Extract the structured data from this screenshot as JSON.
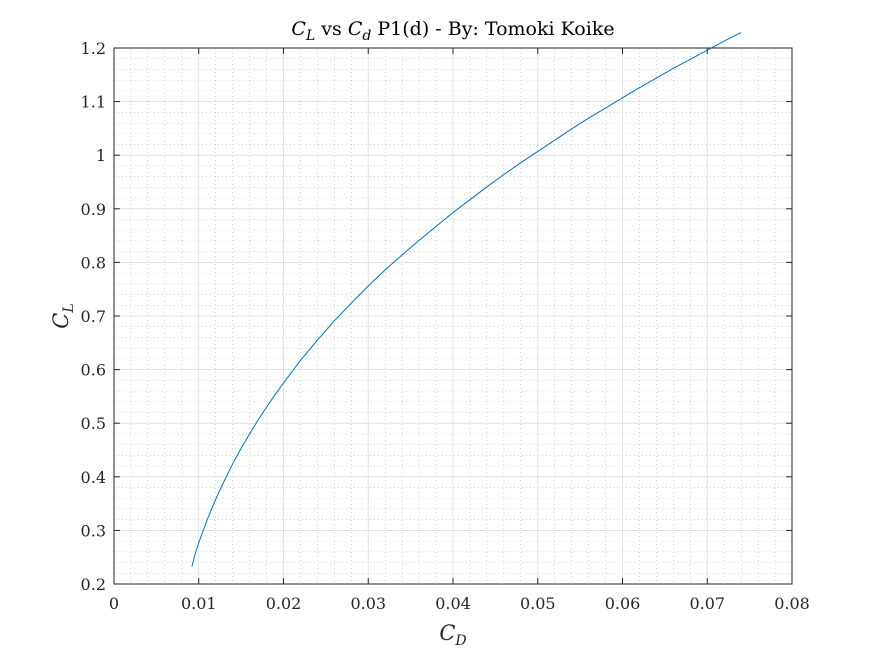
{
  "chart_data": {
    "type": "line",
    "title": {
      "main_symbol": "C",
      "main_subscript": "L",
      "middle": " vs ",
      "second_symbol": "C",
      "second_subscript": "d",
      "suffix": " P1(d) - By: Tomoki Koike"
    },
    "xlabel": {
      "symbol": "C",
      "subscript": "D"
    },
    "ylabel": {
      "symbol": "C",
      "subscript": "L"
    },
    "xlim": [
      0,
      0.08
    ],
    "ylim": [
      0.2,
      1.2
    ],
    "xticks": [
      "0",
      "0.01",
      "0.02",
      "0.03",
      "0.04",
      "0.05",
      "0.06",
      "0.07",
      "0.08"
    ],
    "yticks": [
      "0.2",
      "0.3",
      "0.4",
      "0.5",
      "0.6",
      "0.7",
      "0.8",
      "0.9",
      "1",
      "1.1",
      "1.2"
    ],
    "grid": true,
    "minor_grid": true,
    "line_color": "#0072BD",
    "series": [
      {
        "x": [
          0.0092,
          0.0095,
          0.01,
          0.011,
          0.012,
          0.013,
          0.014,
          0.015,
          0.016,
          0.017,
          0.018,
          0.019,
          0.02,
          0.022,
          0.024,
          0.026,
          0.028,
          0.03,
          0.032,
          0.034,
          0.036,
          0.038,
          0.04,
          0.042,
          0.044,
          0.046,
          0.048,
          0.05,
          0.052,
          0.054,
          0.056,
          0.058,
          0.06,
          0.062,
          0.064,
          0.066,
          0.068,
          0.07,
          0.072,
          0.074
        ],
        "y": [
          0.233,
          0.252,
          0.277,
          0.32,
          0.358,
          0.392,
          0.424,
          0.453,
          0.48,
          0.506,
          0.53,
          0.553,
          0.575,
          0.617,
          0.655,
          0.691,
          0.724,
          0.756,
          0.786,
          0.814,
          0.841,
          0.867,
          0.893,
          0.917,
          0.941,
          0.964,
          0.986,
          1.007,
          1.028,
          1.049,
          1.069,
          1.088,
          1.107,
          1.126,
          1.144,
          1.162,
          1.179,
          1.196,
          1.213,
          1.229
        ]
      }
    ]
  }
}
